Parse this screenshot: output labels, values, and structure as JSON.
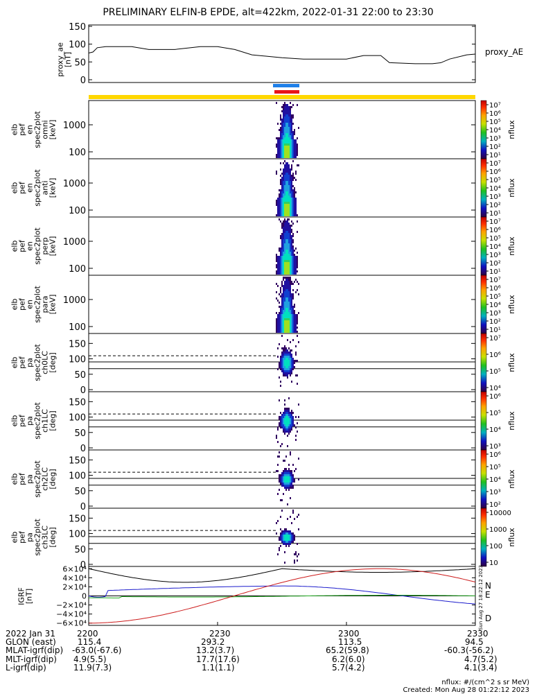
{
  "title": "PRELIMINARY ELFIN-B EPDE, alt=422km, 2022-01-31 22:00 to 23:30",
  "colors": {
    "yellow_bar": "#ffd700",
    "blue_bar": "#1e7fe8",
    "red_bar": "#e8151a",
    "bx": "#1a1acc",
    "by": "#1fa81f",
    "bz": "#cc1a1a",
    "btot": "#000000"
  },
  "time_ticks": [
    "2200",
    "2230",
    "2300",
    "2330"
  ],
  "chart_data": [
    {
      "type": "line",
      "ylabel": "proxy_ae\n[nT]",
      "legend": "proxy_AE",
      "ylim": [
        0,
        150
      ],
      "yticks": [
        "150",
        "100",
        "50",
        "0"
      ],
      "x": [
        0,
        1,
        2,
        4,
        10,
        14,
        20,
        26,
        30,
        34,
        38,
        45,
        50,
        55,
        60,
        64,
        68,
        70,
        76,
        80,
        82,
        84,
        88,
        90
      ],
      "values": [
        75,
        78,
        90,
        93,
        93,
        85,
        85,
        93,
        93,
        85,
        70,
        62,
        58,
        58,
        58,
        68,
        68,
        48,
        45,
        45,
        48,
        58,
        70,
        72
      ]
    },
    {
      "type": "heatmap",
      "ylabel": "elb\npef\nen\nspec2plot\nomni\n[keV]",
      "yticks": [
        "1000",
        "100"
      ],
      "cbar_label": "nflux",
      "cbar_ticks": [
        "10⁷",
        "10⁶",
        "10⁵",
        "10⁴",
        "10³",
        "10²",
        "10¹"
      ],
      "scale": "log"
    },
    {
      "type": "heatmap",
      "ylabel": "elb\npef\nen\nspec2plot\nanti\n[keV]",
      "yticks": [
        "1000",
        "100"
      ],
      "cbar_label": "nflux",
      "cbar_ticks": [
        "10⁷",
        "10⁶",
        "10⁵",
        "10⁴",
        "10³",
        "10²",
        "10¹"
      ],
      "scale": "log"
    },
    {
      "type": "heatmap",
      "ylabel": "elb\npef\nen\nspec2plot\nperp\n[keV]",
      "yticks": [
        "1000",
        "100"
      ],
      "cbar_label": "nflux",
      "cbar_ticks": [
        "10⁷",
        "10⁶",
        "10⁵",
        "10⁴",
        "10³",
        "10²",
        "10¹"
      ],
      "scale": "log"
    },
    {
      "type": "heatmap",
      "ylabel": "elb\npef\nen\nspec2plot\npara\n[keV]",
      "yticks": [
        "1000",
        "100"
      ],
      "cbar_label": "nflux",
      "cbar_ticks": [
        "10⁷",
        "10⁶",
        "10⁵",
        "10⁴",
        "10³",
        "10²",
        "10¹"
      ],
      "scale": "log"
    },
    {
      "type": "heatmap",
      "ylabel": "elb\npef\npa\nspec2plot\nch0LC\n[deg]",
      "yticks": [
        "150",
        "100",
        "50",
        "0"
      ],
      "cbar_label": "nflux",
      "cbar_ticks": [
        "10⁷",
        "10⁶",
        "10⁵",
        "10⁴"
      ],
      "scale": "log"
    },
    {
      "type": "heatmap",
      "ylabel": "elb\npef\npa\nspec2plot\nch1LC\n[deg]",
      "yticks": [
        "150",
        "100",
        "50",
        "0"
      ],
      "cbar_label": "nflux",
      "cbar_ticks": [
        "10⁶",
        "10⁵",
        "10⁴",
        "10³"
      ],
      "scale": "log"
    },
    {
      "type": "heatmap",
      "ylabel": "elb\npef\npa\nspec2plot\nch2LC\n[deg]",
      "yticks": [
        "150",
        "100",
        "50",
        "0"
      ],
      "cbar_label": "nflux",
      "cbar_ticks": [
        "10⁶",
        "10⁵",
        "10⁴",
        "10³",
        "10²"
      ],
      "scale": "log"
    },
    {
      "type": "heatmap",
      "ylabel": "elb\npef\npa\nspec2plot\nch3LC\n[deg]",
      "yticks": [
        "150",
        "100",
        "50",
        "0"
      ],
      "cbar_label": "nflux",
      "cbar_ticks": [
        "10000",
        "1000",
        "100",
        "10"
      ],
      "scale": "log"
    },
    {
      "type": "line",
      "ylabel": "IGRF\n[nT]",
      "yticks": [
        "6×10⁴",
        "4×10⁴",
        "2×10⁴",
        "0",
        "−2×10⁴",
        "−4×10⁴",
        "−6×10⁴"
      ],
      "ylim": [
        -65000,
        65000
      ],
      "series": [
        {
          "name": "N",
          "color": "#1a1acc"
        },
        {
          "name": "E",
          "color": "#1fa81f"
        },
        {
          "name": "D",
          "color": "#cc1a1a"
        }
      ]
    }
  ],
  "footer": {
    "date": "2022 Jan 31",
    "rows": [
      {
        "label": "GLON (east)",
        "values": [
          "115.4",
          "293.2",
          "113.5",
          "94.5"
        ]
      },
      {
        "label": "MLAT-igrf(dip)",
        "values": [
          "-63.0(-67.6)",
          "13.2(3.7)",
          "65.2(59.8)",
          "-60.3(-56.2)"
        ]
      },
      {
        "label": "MLT-igrf(dip)",
        "values": [
          "4.9(5.5)",
          "17.7(17.6)",
          "6.2(6.0)",
          "4.7(5.2)"
        ]
      },
      {
        "label": "L-igrf(dip)",
        "values": [
          "11.9(7.3)",
          "1.1(1.1)",
          "5.7(4.2)",
          "4.1(3.4)"
        ]
      }
    ],
    "units_note": "nflux: #/(cm^2 s sr MeV)",
    "created": "Created: Mon Aug 28 01:22:12 2023",
    "stamp": "Sun Aug 27 18:22:12 2023"
  }
}
